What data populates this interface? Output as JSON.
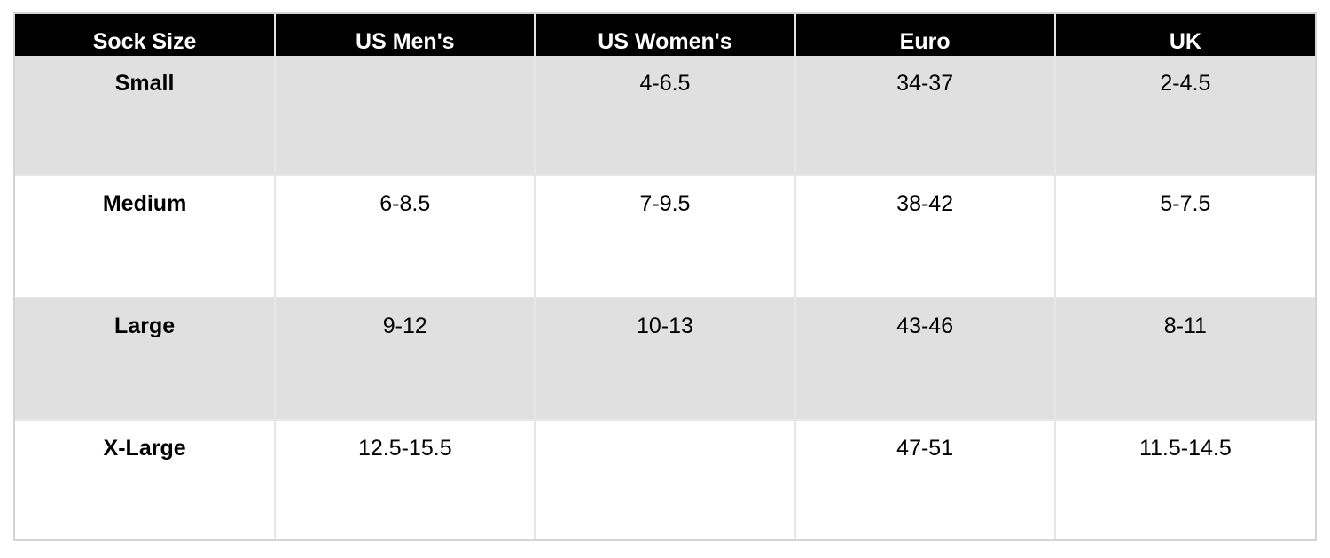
{
  "table": {
    "columns": [
      "Sock Size",
      "US Men's",
      "US Women's",
      "Euro",
      "UK"
    ],
    "rows": [
      [
        "Small",
        "",
        "4-6.5",
        "34-37",
        "2-4.5"
      ],
      [
        "Medium",
        "6-8.5",
        "7-9.5",
        "38-42",
        "5-7.5"
      ],
      [
        "Large",
        "9-12",
        "10-13",
        "43-46",
        "8-11"
      ],
      [
        "X-Large",
        "12.5-15.5",
        "",
        "47-51",
        "11.5-14.5"
      ]
    ]
  },
  "colors": {
    "header_bg": "#000000",
    "header_text": "#ffffff",
    "row_stripe": "#e0e0e0",
    "row_plain": "#ffffff",
    "grid_line": "#e6e6e6",
    "outer_border": "#d4d4d4",
    "body_text": "#000000",
    "page_bg": "#ffffff"
  },
  "chart_data": {
    "type": "table",
    "columns": [
      "Sock Size",
      "US Men's",
      "US Women's",
      "Euro",
      "UK"
    ],
    "rows": [
      {
        "sock_size": "Small",
        "us_mens": "",
        "us_womens": "4-6.5",
        "euro": "34-37",
        "uk": "2-4.5"
      },
      {
        "sock_size": "Medium",
        "us_mens": "6-8.5",
        "us_womens": "7-9.5",
        "euro": "38-42",
        "uk": "5-7.5"
      },
      {
        "sock_size": "Large",
        "us_mens": "9-12",
        "us_womens": "10-13",
        "euro": "43-46",
        "uk": "8-11"
      },
      {
        "sock_size": "X-Large",
        "us_mens": "12.5-15.5",
        "us_womens": "",
        "euro": "47-51",
        "uk": "11.5-14.5"
      }
    ],
    "layout": {
      "header_style": "black background, white bold text",
      "row_striping": "odd rows gray, even rows white",
      "text_alignment": "center horizontal, top vertical"
    }
  }
}
